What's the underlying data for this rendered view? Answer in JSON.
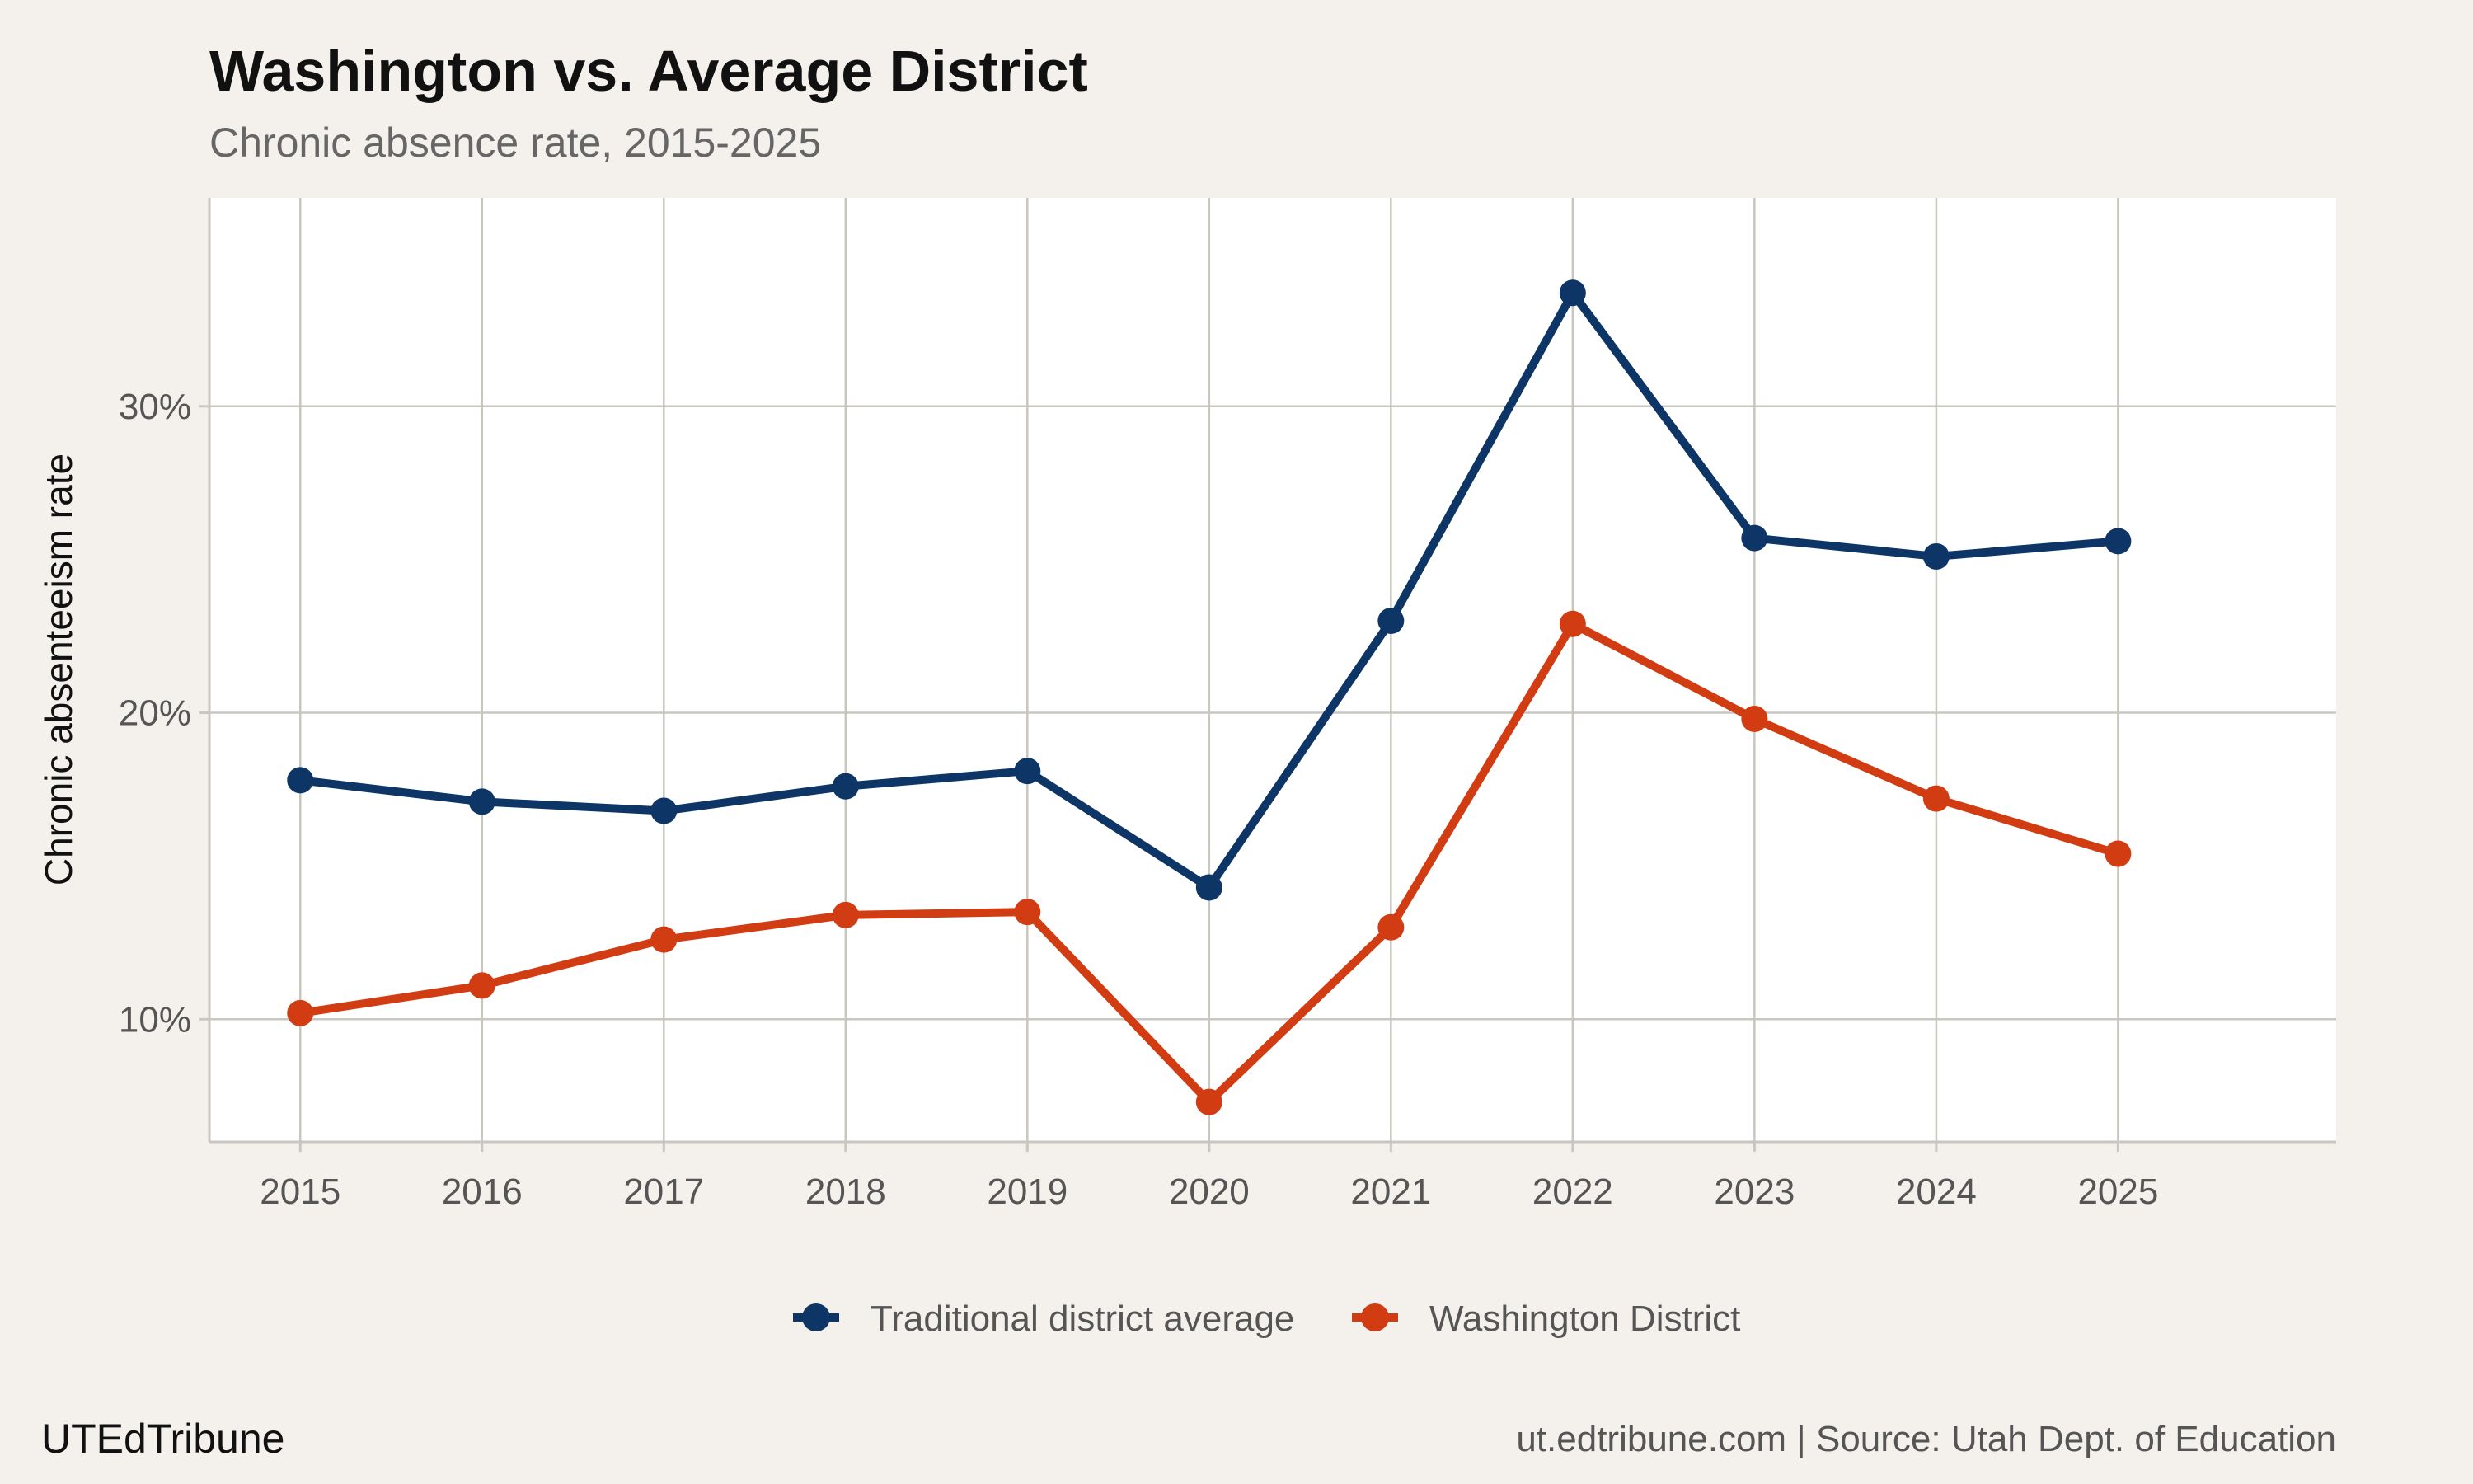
{
  "header": {
    "title": "Washington vs. Average District",
    "subtitle": "Chronic absence rate, 2015-2025"
  },
  "footer": {
    "brand": "UTEdTribune",
    "source": "ut.edtribune.com | Source: Utah Dept. of Education"
  },
  "colors": {
    "background": "#f4f1ec",
    "panel": "#ffffff",
    "grid": "#c9c6c0",
    "traditional": "#0d3566",
    "washington": "#d23c12"
  },
  "chart_data": {
    "type": "line",
    "title": "Washington vs. Average District",
    "subtitle": "Chronic absence rate, 2015-2025",
    "xlabel": "",
    "ylabel": "Chronic absenteeism rate",
    "x": [
      "2015",
      "2016",
      "2017",
      "2018",
      "2019",
      "2020",
      "2021",
      "2022",
      "2023",
      "2024",
      "2025"
    ],
    "xlim": [
      2014.5,
      2026.2
    ],
    "ylim": [
      0.06,
      0.368
    ],
    "yticks": [
      0.1,
      0.2,
      0.3
    ],
    "ytick_labels": [
      "10%",
      "20%",
      "30%"
    ],
    "grid": true,
    "legend_position": "bottom",
    "series": [
      {
        "name": "Traditional district average",
        "color": "#0d3566",
        "values": [
          0.178,
          0.171,
          0.168,
          0.176,
          0.181,
          0.143,
          0.23,
          0.337,
          0.257,
          0.251,
          0.256
        ]
      },
      {
        "name": "Washington District",
        "color": "#d23c12",
        "values": [
          0.102,
          0.111,
          0.126,
          0.134,
          0.135,
          0.073,
          0.13,
          0.229,
          0.198,
          0.172,
          0.154
        ]
      }
    ]
  }
}
